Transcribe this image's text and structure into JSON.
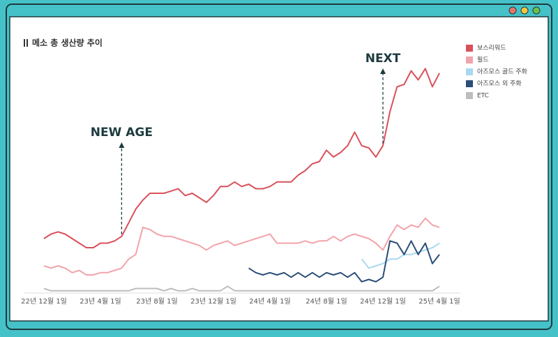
{
  "chart_data": {
    "type": "line",
    "title": "메소 총 생산량 추이",
    "categories": [
      "22년 12월 1일",
      null,
      null,
      null,
      null,
      null,
      null,
      null,
      "23년 4월 1일",
      null,
      null,
      null,
      null,
      null,
      null,
      null,
      "23년 8월 1일",
      null,
      null,
      null,
      null,
      null,
      null,
      null,
      "23년 12월 1일",
      null,
      null,
      null,
      null,
      null,
      null,
      null,
      "24년 4월 1일",
      null,
      null,
      null,
      null,
      null,
      null,
      null,
      "24년 8월 1일",
      null,
      null,
      null,
      null,
      null,
      null,
      null,
      "24년 12월 1일",
      null,
      null,
      null,
      null,
      null,
      null,
      null,
      "25년 4월 1일"
    ],
    "ylim": [
      0,
      100
    ],
    "legend": "right",
    "annotations": [
      "NEW AGE",
      "NEXT"
    ],
    "series": [
      {
        "name": "보스리워드",
        "color": "#d9505a",
        "values": [
          24,
          26,
          27,
          26,
          24,
          22,
          20,
          20,
          22,
          22,
          23,
          25,
          31,
          37,
          41,
          44,
          44,
          44,
          45,
          46,
          43,
          44,
          42,
          40,
          43,
          47,
          47,
          49,
          47,
          48,
          46,
          46,
          47,
          49,
          49,
          49,
          52,
          54,
          57,
          58,
          63,
          60,
          62,
          65,
          71,
          65,
          64,
          60,
          65,
          80,
          91,
          92,
          98,
          94,
          99,
          91,
          97
        ]
      },
      {
        "name": "필드",
        "color": "#f2a3ab",
        "values": [
          12,
          11,
          12,
          11,
          9,
          10,
          8,
          8,
          9,
          9,
          10,
          11,
          15,
          17,
          29,
          28,
          26,
          25,
          25,
          24,
          23,
          22,
          21,
          19,
          21,
          22,
          23,
          21,
          22,
          23,
          24,
          25,
          26,
          22,
          22,
          22,
          22,
          23,
          22,
          23,
          23,
          25,
          23,
          25,
          26,
          25,
          24,
          22,
          19,
          25,
          30,
          28,
          30,
          29,
          33,
          30,
          29
        ]
      },
      {
        "name": "아즈모스 골드 주화",
        "color": "#aad8f0",
        "values": [
          null,
          null,
          null,
          null,
          null,
          null,
          null,
          null,
          null,
          null,
          null,
          null,
          null,
          null,
          null,
          null,
          null,
          null,
          null,
          null,
          null,
          null,
          null,
          null,
          null,
          null,
          null,
          null,
          null,
          null,
          null,
          null,
          null,
          null,
          null,
          null,
          null,
          null,
          null,
          null,
          null,
          null,
          null,
          null,
          null,
          15,
          11,
          12,
          13,
          15,
          15,
          17,
          17,
          18,
          19,
          20,
          22
        ]
      },
      {
        "name": "아즈모스 외 주화",
        "color": "#2b4d78",
        "values": [
          null,
          null,
          null,
          null,
          null,
          null,
          null,
          null,
          null,
          null,
          null,
          null,
          null,
          null,
          null,
          null,
          null,
          null,
          null,
          null,
          null,
          null,
          null,
          null,
          null,
          null,
          null,
          null,
          null,
          11,
          9,
          8,
          9,
          8,
          9,
          7,
          9,
          7,
          9,
          7,
          9,
          8,
          9,
          7,
          9,
          5,
          6,
          5,
          7,
          23,
          22,
          17,
          23,
          17,
          22,
          13,
          17
        ]
      },
      {
        "name": "ETC",
        "color": "#bdbdbd",
        "values": [
          2,
          1,
          1,
          1,
          1,
          1,
          1,
          1,
          1,
          1,
          1,
          1,
          1,
          2,
          2,
          2,
          2,
          1,
          2,
          1,
          1,
          2,
          1,
          1,
          1,
          1,
          3,
          1,
          1,
          1,
          1,
          1,
          1,
          1,
          1,
          1,
          1,
          1,
          1,
          1,
          1,
          1,
          1,
          1,
          1,
          1,
          1,
          1,
          1,
          1,
          1,
          1,
          1,
          1,
          1,
          1,
          3
        ]
      }
    ]
  }
}
